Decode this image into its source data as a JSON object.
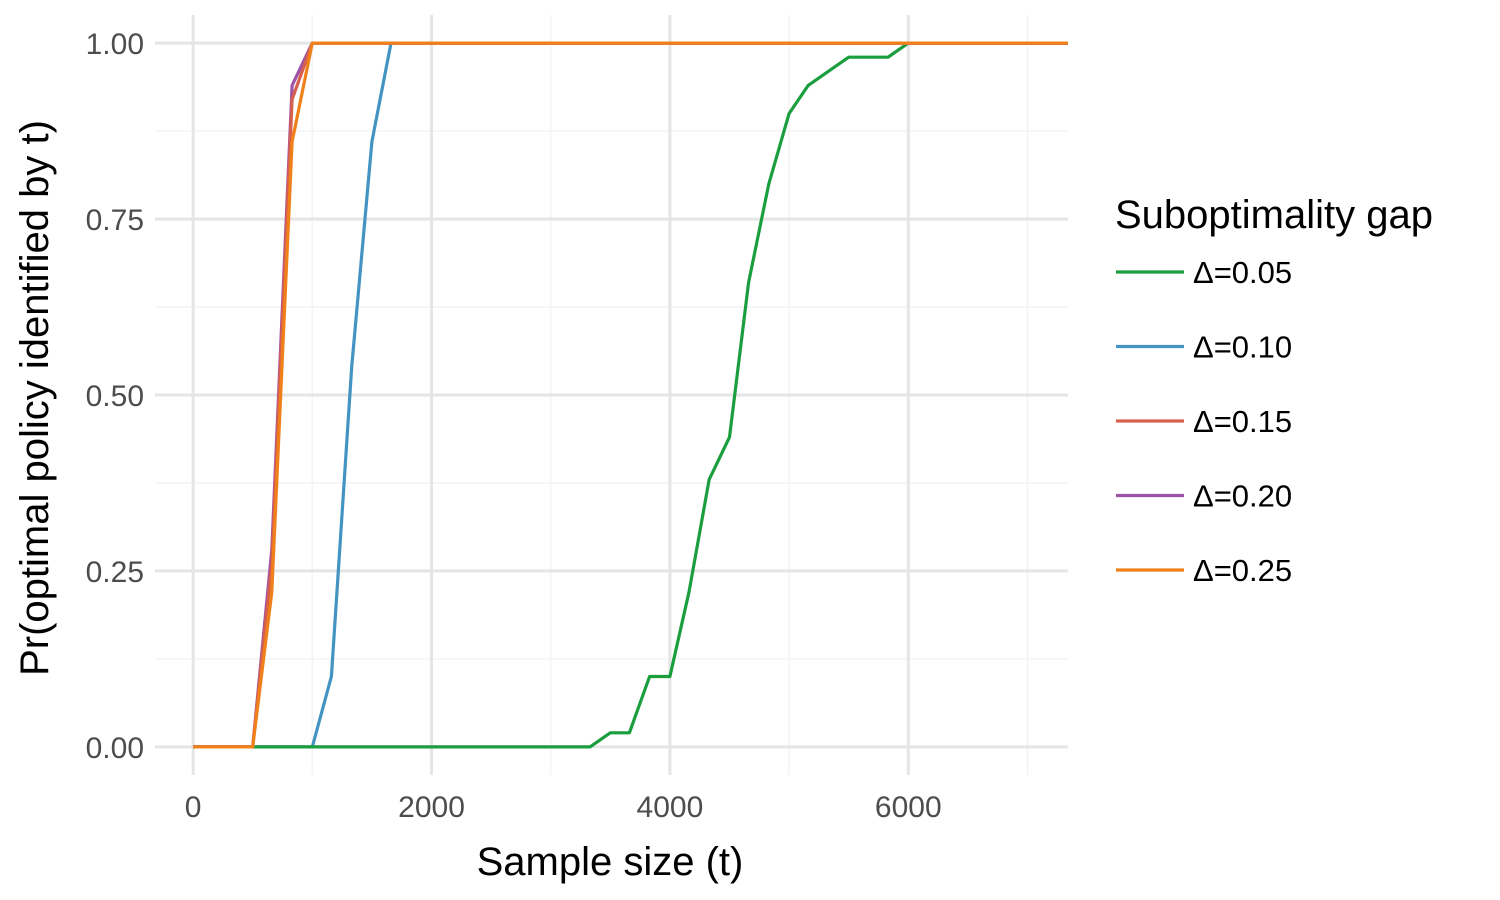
{
  "chart_data": {
    "type": "line",
    "title": "",
    "xlabel": "Sample size (t)",
    "ylabel": "Pr(optimal policy identified by t)",
    "xlim": [
      -320,
      7340
    ],
    "ylim": [
      -0.04,
      1.04
    ],
    "x_ticks": [
      0,
      2000,
      4000,
      6000
    ],
    "x_tick_labels": [
      "0",
      "2000",
      "4000",
      "6000"
    ],
    "y_ticks": [
      0,
      0.25,
      0.5,
      0.75,
      1
    ],
    "y_tick_labels": [
      "0.00",
      "0.25",
      "0.50",
      "0.75",
      "1.00"
    ],
    "x_minor": [
      1000,
      3000,
      5000,
      7000
    ],
    "y_minor": [
      0.125,
      0.375,
      0.625,
      0.875
    ],
    "grid": true,
    "legend": {
      "title": "Suboptimality gap",
      "position": "right"
    },
    "series": [
      {
        "name": "Δ=0.05",
        "color": "#1b9e3e",
        "x": [
          0,
          500,
          1000,
          1500,
          2000,
          2500,
          3000,
          3330,
          3500,
          3660,
          3830,
          4000,
          4160,
          4330,
          4500,
          4660,
          4830,
          5000,
          5160,
          5330,
          5500,
          5660,
          5830,
          6000,
          7340
        ],
        "y": [
          0,
          0,
          0,
          0,
          0,
          0,
          0,
          0,
          0.02,
          0.02,
          0.1,
          0.1,
          0.22,
          0.38,
          0.44,
          0.66,
          0.8,
          0.9,
          0.94,
          0.96,
          0.98,
          0.98,
          0.98,
          1.0,
          1.0
        ]
      },
      {
        "name": "Δ=0.10",
        "color": "#4393c3",
        "x": [
          0,
          500,
          1000,
          1160,
          1330,
          1500,
          1660,
          7340
        ],
        "y": [
          0,
          0,
          0,
          0.1,
          0.54,
          0.86,
          1.0,
          1.0
        ]
      },
      {
        "name": "Δ=0.15",
        "color": "#d6604d",
        "x": [
          0,
          500,
          660,
          830,
          1000,
          7340
        ],
        "y": [
          0,
          0,
          0.26,
          0.92,
          1.0,
          1.0
        ]
      },
      {
        "name": "Δ=0.20",
        "color": "#9e52a8",
        "x": [
          0,
          500,
          660,
          830,
          1000,
          7340
        ],
        "y": [
          0,
          0,
          0.28,
          0.94,
          1.0,
          1.0
        ]
      },
      {
        "name": "Δ=0.25",
        "color": "#f0801a",
        "x": [
          0,
          500,
          660,
          830,
          1000,
          7340
        ],
        "y": [
          0,
          0,
          0.22,
          0.86,
          1.0,
          1.0
        ]
      }
    ]
  }
}
